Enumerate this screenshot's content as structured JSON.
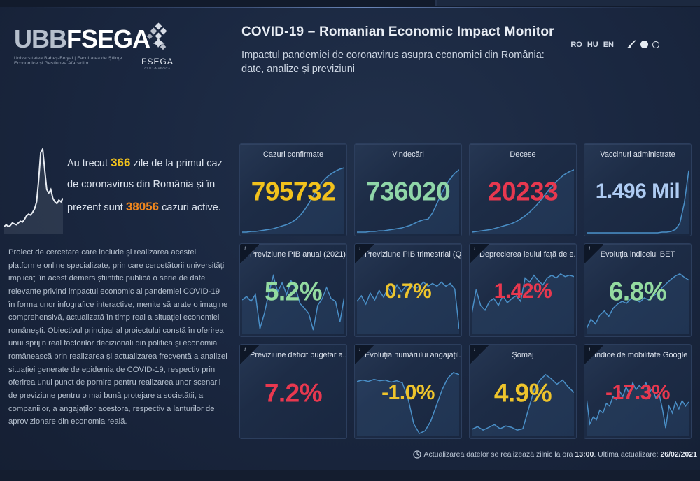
{
  "colors": {
    "yellow": "#f2c21c",
    "orange": "#f0871e",
    "green": "#93dba0",
    "red": "#e8384f",
    "blue": "#aecbf2",
    "spark_line": "#4a8fc7",
    "spark_fill": "rgba(74,125,180,0.16)",
    "side_line": "#e8ecf2"
  },
  "header": {
    "logo_ubb": "UBB",
    "logo_fsega": "FSEGA",
    "logo_tagline": "Universitatea Babeș-Bolyai | Facultatea de Științe Economice și Gestiunea Afacerilor",
    "badge_name": "FSEGA",
    "badge_sub": "CLUJ-NAPOCA",
    "title": "COVID-19 – Romanian Economic Impact Monitor",
    "subtitle": "Impactul pandemiei de coronavirus asupra economiei din România: date, analize și previziuni",
    "languages": [
      "RO",
      "HU",
      "EN"
    ]
  },
  "sidebar": {
    "intro_pre": "Au trecut ",
    "intro_days": "366",
    "intro_mid1": " zile de la primul caz de coronavirus din România și în prezent sunt ",
    "intro_active": "38056",
    "intro_post": " cazuri active.",
    "about": "Proiect de cercetare care include și realizarea acestei platforme online specializate, prin care cercetătorii universității implicați în acest demers științific publică o serie de date relevante privind impactul economic al pandemiei COVID-19 în forma unor infografice interactive, menite să arate o imagine comprehensivă, actualizată în timp real a situației economiei românești. Obiectivul principal al proiectului constă în oferirea unui sprijin real factorilor decizionali din politica și economia românească prin realizarea și actualizarea frecventă a analizei situației generate de epidemia de COVID-19, respectiv prin oferirea unui punct de pornire pentru realizarea unor scenarii de previziune pentru o mai bună protejare a societății, a companiilor, a angajaților acestora, respectiv a lanțurilor de aprovizionare din economia reală.",
    "spark": [
      8,
      10,
      8,
      9,
      12,
      11,
      10,
      12,
      14,
      13,
      16,
      20,
      22,
      21,
      24,
      28,
      36,
      60,
      92,
      96,
      72,
      50,
      46,
      50,
      40,
      36,
      34,
      38,
      36,
      40
    ]
  },
  "cards": [
    {
      "title": "Cazuri confirmate",
      "value": "795732",
      "value_color": "#f2c21c",
      "size": "v-big",
      "info": false,
      "spark": [
        2,
        2,
        3,
        3,
        4,
        5,
        6,
        7,
        9,
        11,
        13,
        16,
        20,
        26,
        34,
        44,
        55,
        66,
        75,
        82,
        87,
        91,
        94,
        96
      ]
    },
    {
      "title": "Vindecări",
      "value": "736020",
      "value_color": "#8fd6a8",
      "size": "v-big",
      "info": false,
      "spark": [
        2,
        2,
        2,
        3,
        3,
        4,
        4,
        5,
        6,
        7,
        8,
        10,
        12,
        15,
        18,
        20,
        21,
        30,
        44,
        58,
        70,
        80,
        88,
        93
      ]
    },
    {
      "title": "Decese",
      "value": "20233",
      "value_color": "#e8384f",
      "size": "v-big",
      "info": false,
      "spark": [
        2,
        3,
        4,
        5,
        6,
        8,
        10,
        12,
        14,
        17,
        21,
        26,
        32,
        39,
        47,
        56,
        65,
        73,
        80,
        86,
        90,
        93
      ]
    },
    {
      "title": "Vaccinuri administrate",
      "value": "1.496 Mil",
      "value_color": "#aecbf2",
      "size": "v-mid",
      "info": false,
      "spark": [
        1,
        1,
        1,
        1,
        1,
        1,
        1,
        1,
        1,
        1,
        1,
        1,
        1,
        1,
        1,
        1,
        1,
        2,
        2,
        3,
        6,
        15,
        45,
        92
      ]
    },
    {
      "title": "Previziune PIB anual (2021)",
      "value": "5.2%",
      "value_color": "#93dba0",
      "size": "v-big",
      "info": true,
      "spark": [
        50,
        55,
        48,
        58,
        8,
        30,
        60,
        85,
        62,
        75,
        58,
        78,
        68,
        45,
        38,
        30,
        6,
        42,
        52,
        68,
        52,
        48,
        18,
        55
      ]
    },
    {
      "title": "Previziune PIB trimestrial (Q...",
      "value": "0.7%",
      "value_color": "#eec42c",
      "size": "v-mid",
      "info": true,
      "spark": [
        48,
        56,
        44,
        60,
        50,
        64,
        54,
        68,
        58,
        72,
        62,
        70,
        74,
        66,
        70,
        76,
        70,
        74,
        70,
        76,
        70,
        74,
        66,
        8
      ]
    },
    {
      "title": "Deprecierea leului față de e...",
      "value": "1.42%",
      "value_color": "#e8384f",
      "size": "v-mid",
      "info": true,
      "spark": [
        30,
        65,
        42,
        35,
        48,
        52,
        42,
        56,
        46,
        52,
        56,
        48,
        82,
        76,
        86,
        78,
        72,
        82,
        86,
        82,
        88,
        84,
        86,
        84
      ]
    },
    {
      "title": "Evoluția indicelui BET",
      "value": "6.8%",
      "value_color": "#93dba0",
      "size": "v-big",
      "info": true,
      "spark": [
        8,
        22,
        15,
        28,
        34,
        26,
        38,
        44,
        48,
        45,
        52,
        50,
        47,
        53,
        50,
        56,
        60,
        68,
        74,
        80,
        85,
        88,
        83,
        79
      ]
    },
    {
      "title": "Previziune deficit bugetar a...",
      "value": "7.2%",
      "value_color": "#e8384f",
      "size": "v-big",
      "info": true,
      "spark": []
    },
    {
      "title": "Evoluția numărului angajațil...",
      "value": "-1.0%",
      "value_color": "#eec42c",
      "size": "v-mid",
      "info": true,
      "spark": [
        80,
        82,
        80,
        83,
        81,
        82,
        79,
        81,
        78,
        55,
        18,
        4,
        8,
        22,
        45,
        68,
        85,
        93,
        90
      ]
    },
    {
      "title": "Șomaj",
      "value": "4.9%",
      "value_color": "#eec42c",
      "size": "v-big",
      "info": true,
      "spark": [
        10,
        14,
        9,
        13,
        17,
        11,
        15,
        13,
        9,
        11,
        40,
        68,
        82,
        90,
        84,
        76,
        82,
        72,
        64
      ]
    },
    {
      "title": "Indice de mobilitate Google",
      "value": "-17.3%",
      "value_color": "#e8384f",
      "size": "v-mid",
      "info": true,
      "spark": [
        55,
        18,
        28,
        24,
        38,
        34,
        48,
        44,
        58,
        54,
        66,
        58,
        72,
        62,
        78,
        68,
        74,
        70,
        78,
        64,
        70,
        56,
        62,
        40,
        12,
        44,
        34,
        50,
        40,
        52,
        44,
        50
      ]
    }
  ],
  "footer": {
    "text_pre": "Actualizarea datelor se realizează zilnic la ora ",
    "time": "13:00",
    "text_mid": ". Ultima actualizare: ",
    "date": "26/02/2021"
  }
}
